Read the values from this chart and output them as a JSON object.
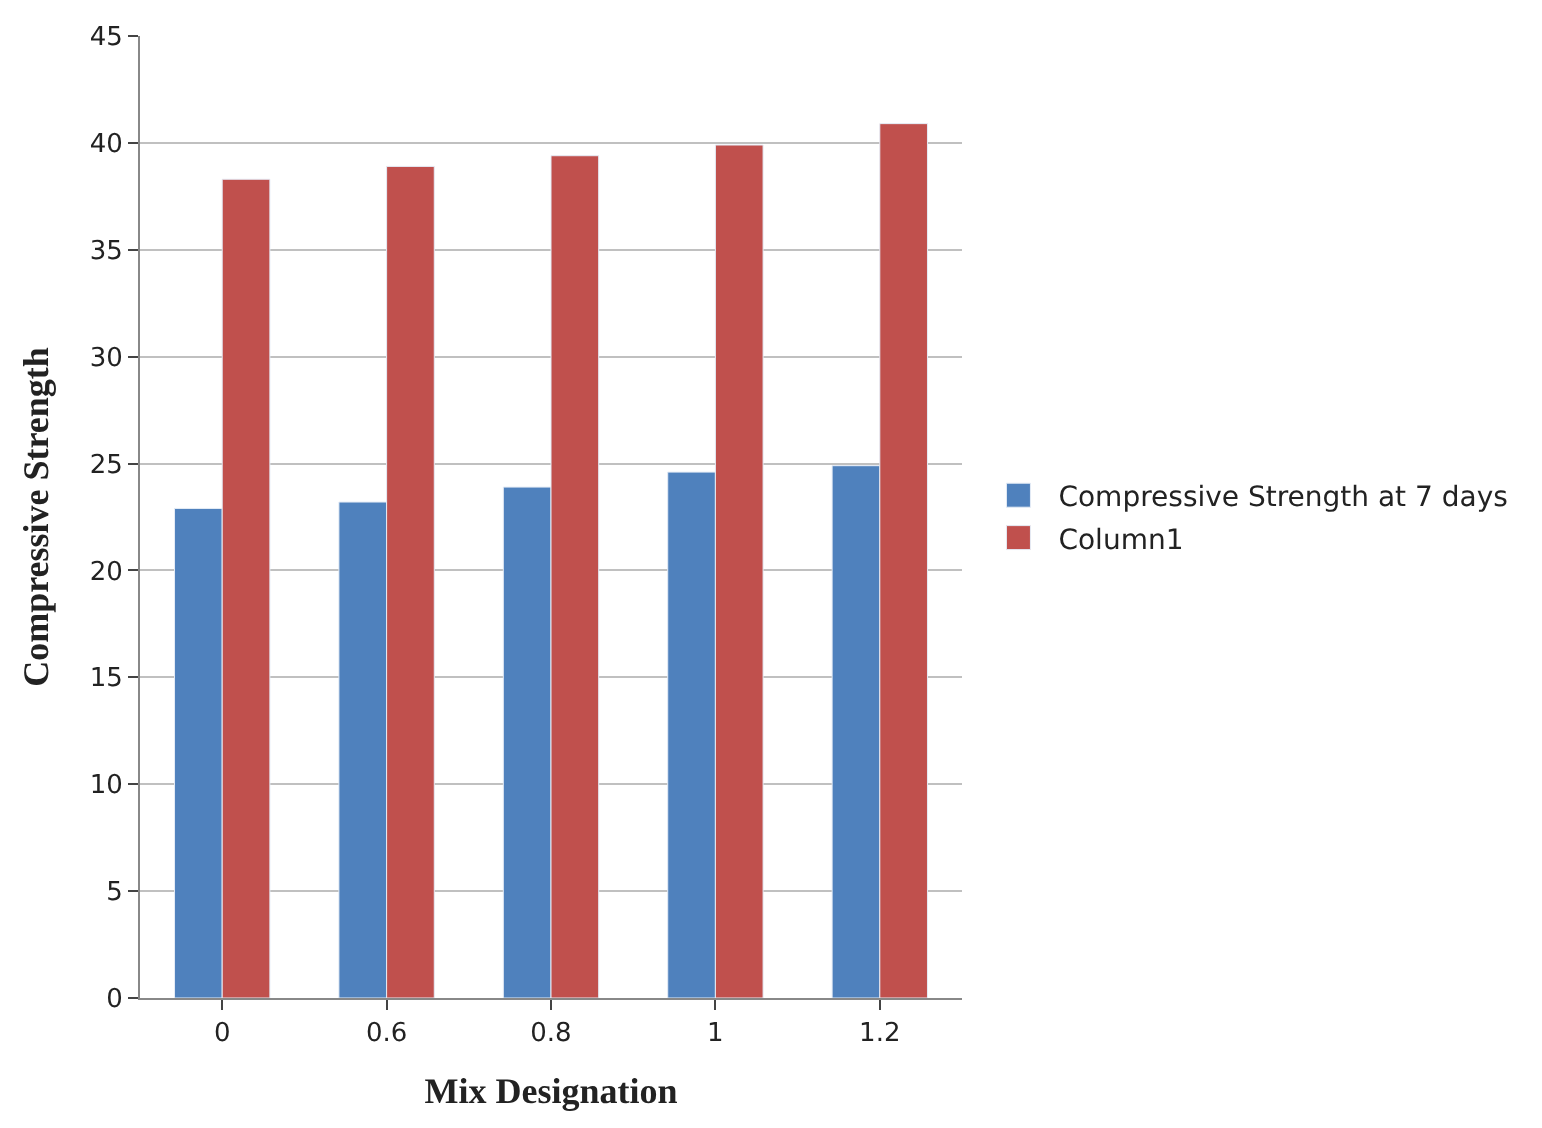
{
  "chart_data": {
    "type": "bar",
    "xlabel": "Mix Designation",
    "ylabel": "Compressive Strength",
    "categories": [
      "0",
      "0.6",
      "0.8",
      "1",
      "1.2"
    ],
    "series": [
      {
        "name": "Compressive Strength at 7 days",
        "color": "#4f81bd",
        "values": [
          22.9,
          23.2,
          23.9,
          24.6,
          24.9
        ]
      },
      {
        "name": "Column1",
        "color": "#c0504d",
        "values": [
          38.3,
          38.9,
          39.4,
          39.9,
          40.9
        ]
      }
    ],
    "ylim": [
      0,
      45
    ],
    "yticks": [
      0,
      5,
      10,
      15,
      20,
      25,
      30,
      35,
      40,
      45
    ],
    "grid": "y",
    "legend": "right"
  }
}
